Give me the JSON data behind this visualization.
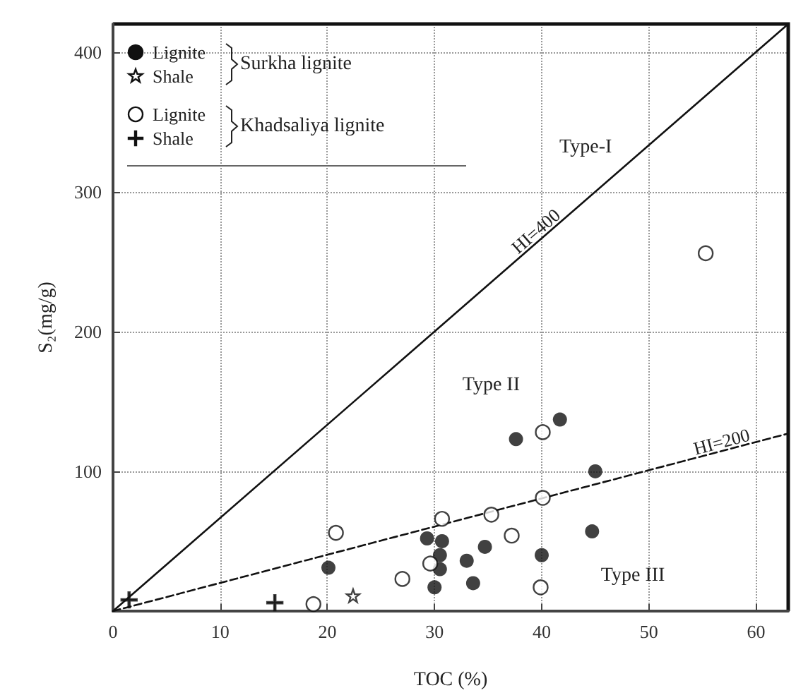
{
  "chart_data": {
    "type": "scatter",
    "xlabel": "TOC (%)",
    "ylabel": "S₂(mg/g)",
    "xlim": [
      0,
      63
    ],
    "ylim": [
      0,
      420
    ],
    "xticks": [
      0,
      10,
      20,
      30,
      40,
      50,
      60
    ],
    "yticks": [
      {
        "value": 0,
        "label": null
      },
      100,
      200,
      300,
      400
    ],
    "grid": true,
    "legend": "top left",
    "series": [
      {
        "name": "Lignite",
        "marker": "circle",
        "color": "#111111",
        "x": [
          37.6,
          41.7,
          45,
          44.7,
          40,
          34.7,
          33,
          33.6,
          30,
          29.3,
          30.7,
          30.5,
          30.5,
          20.1
        ],
        "values": [
          123,
          137,
          100,
          57,
          40,
          46,
          36,
          20,
          17,
          52,
          50,
          40,
          30,
          31
        ]
      },
      {
        "name": "Shale",
        "marker": "star",
        "color": "#111111",
        "x": [
          22.4
        ],
        "values": [
          11
        ]
      },
      {
        "name": "Lignite",
        "marker": "circle",
        "color": "#111111",
        "x": [
          40.1,
          35.3,
          30.7,
          37.2,
          40.1,
          29.6,
          39.9,
          27,
          55.3,
          20.8,
          18.7
        ],
        "values": [
          128,
          69,
          66,
          54,
          81,
          34,
          17,
          23,
          256,
          56,
          5
        ]
      },
      {
        "name": "Shale",
        "marker": "cross",
        "color": "#111111",
        "x": [
          15.1,
          1.5
        ],
        "values": [
          6,
          8
        ]
      },
      {
        "type": "line",
        "marker": "none",
        "line_style": "solid",
        "color": "#111111",
        "x": [
          0,
          63
        ],
        "values": [
          0,
          420
        ]
      },
      {
        "type": "line",
        "marker": "none",
        "line_style": "dashed",
        "color": "#111111",
        "x": [
          0,
          63
        ],
        "values": [
          0,
          127
        ]
      }
    ],
    "annotations": [
      "Surkha lignite",
      "Khadsaliya lignite",
      {
        "text": "HI=400",
        "x": 40,
        "y": 267
      },
      {
        "text": "HI=200",
        "x": 57,
        "y": 115
      },
      "Type-I",
      "Type II",
      "Type III"
    ]
  }
}
